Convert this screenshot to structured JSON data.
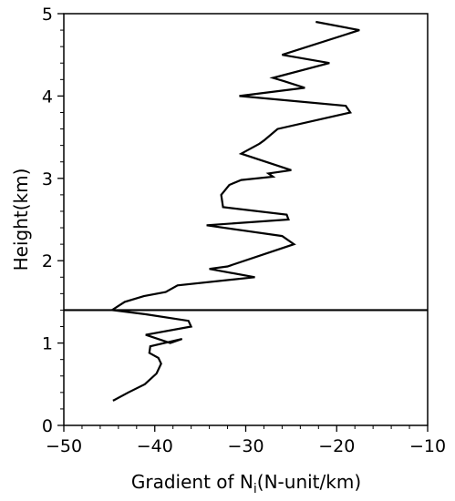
{
  "chart_data": {
    "type": "line",
    "title": "",
    "xlabel_prefix": "Gradient of N",
    "xlabel_subscript": "i",
    "xlabel_suffix": "(N-unit/km)",
    "ylabel": "Height(km)",
    "xlim": [
      -50,
      -10
    ],
    "ylim": [
      0,
      5
    ],
    "xticks": [
      -50,
      -40,
      -30,
      -20,
      -10
    ],
    "xtick_labels": [
      "−50",
      "−40",
      "−30",
      "−20",
      "−10"
    ],
    "yticks": [
      0,
      1,
      2,
      3,
      4,
      5
    ],
    "ytick_labels": [
      "0",
      "1",
      "2",
      "3",
      "4",
      "5"
    ],
    "grid": false,
    "line_color": "#000000",
    "hline": {
      "y": 1.4,
      "color": "#000000"
    },
    "series": [
      {
        "x": [
          -44.6,
          -42.9,
          -41.1,
          -39.8,
          -39.3,
          -39.6,
          -40.6,
          -40.5,
          -37.0,
          -38.3,
          -41.0,
          -36.0,
          -36.3,
          -41.0,
          -44.7,
          -43.3,
          -41.2,
          -38.8,
          -37.5,
          -29.0,
          -34.0,
          -32.0,
          -24.7,
          -26.0,
          -34.3,
          -25.3,
          -25.5,
          -32.5,
          -32.7,
          -31.8,
          -30.5,
          -27.0,
          -27.5,
          -25.0,
          -30.5,
          -28.5,
          -28.0,
          -26.5,
          -18.5,
          -19.0,
          -30.7,
          -23.5,
          -25.8,
          -27.0,
          -20.8,
          -26.0,
          -17.5,
          -22.3
        ],
        "y": [
          0.3,
          0.4,
          0.5,
          0.63,
          0.75,
          0.82,
          0.88,
          0.96,
          1.05,
          1.0,
          1.1,
          1.2,
          1.27,
          1.35,
          1.4,
          1.5,
          1.57,
          1.62,
          1.7,
          1.8,
          1.9,
          1.93,
          2.2,
          2.3,
          2.43,
          2.5,
          2.56,
          2.65,
          2.8,
          2.92,
          2.98,
          3.02,
          3.06,
          3.1,
          3.3,
          3.42,
          3.46,
          3.6,
          3.8,
          3.88,
          4.0,
          4.1,
          4.18,
          4.22,
          4.4,
          4.5,
          4.8,
          4.9
        ]
      }
    ]
  }
}
